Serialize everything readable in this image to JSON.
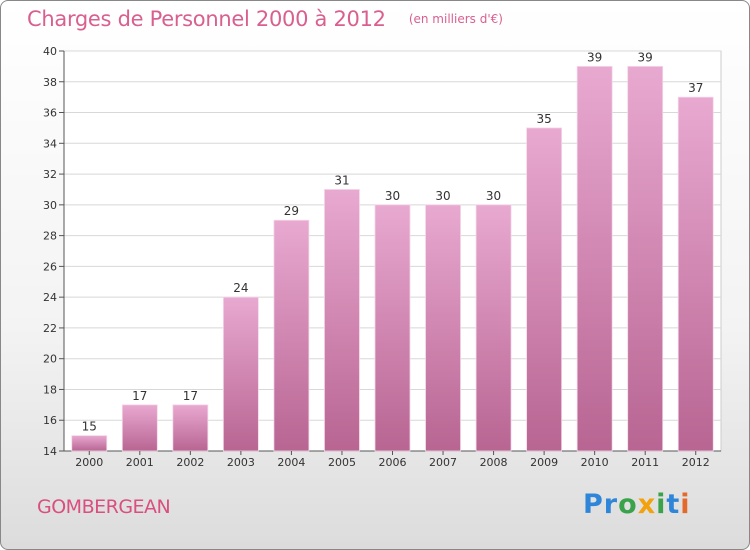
{
  "title": "Charges de Personnel 2000 à 2012",
  "subtitle": "(en milliers d'€)",
  "place": "GOMBERGEAN",
  "brand": {
    "letters": [
      {
        "ch": "P",
        "color": "#2f86d9"
      },
      {
        "ch": "r",
        "color": "#2f86d9"
      },
      {
        "ch": "o",
        "color": "#3aa24a"
      },
      {
        "ch": "x",
        "color": "#f2a20d"
      },
      {
        "ch": "i",
        "color": "#3aa24a"
      },
      {
        "ch": "t",
        "color": "#2f86d9"
      },
      {
        "ch": "i",
        "color": "#e36a2b"
      }
    ]
  },
  "colors": {
    "bar_top": "#e8a9d0",
    "bar_bottom": "#b86592",
    "accent": "#d95f8f"
  },
  "chart_data": {
    "type": "bar",
    "categories": [
      "2000",
      "2001",
      "2002",
      "2003",
      "2004",
      "2005",
      "2006",
      "2007",
      "2008",
      "2009",
      "2010",
      "2011",
      "2012"
    ],
    "values": [
      15,
      17,
      17,
      24,
      29,
      31,
      30,
      30,
      30,
      35,
      39,
      39,
      37
    ],
    "ylim": [
      14,
      40
    ],
    "yticks": [
      14,
      16,
      18,
      20,
      22,
      24,
      26,
      28,
      30,
      32,
      34,
      36,
      38,
      40
    ],
    "grid": true,
    "legend": "none"
  }
}
